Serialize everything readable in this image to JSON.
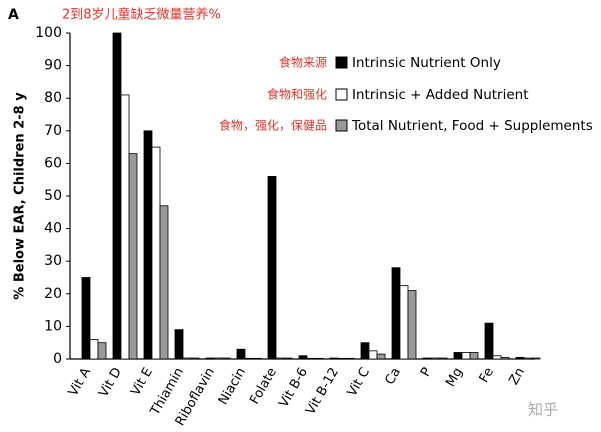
{
  "chart_data": {
    "type": "bar",
    "panel_label": "A",
    "title": "2到8岁儿童缺乏微量营养%",
    "y_label": "% Below EAR, Children 2-8 y",
    "annotations": [
      "食物来源",
      "食物和强化",
      "食物，强化，保健品"
    ],
    "watermark": "知乎",
    "categories": [
      "Vit A",
      "Vit D",
      "Vit E",
      "Thiamin",
      "Riboflavin",
      "Niacin",
      "Folate",
      "Vit B-6",
      "Vit B-12",
      "Vit C",
      "Ca",
      "P",
      "Mg",
      "Fe",
      "Zn"
    ],
    "series": [
      {
        "name": "Intrinsic Nutrient Only",
        "color": "#000000",
        "values": [
          25,
          100,
          70,
          9,
          0.3,
          3,
          56,
          1,
          0.3,
          5,
          28,
          0.3,
          2,
          11,
          0.5
        ]
      },
      {
        "name": "Intrinsic + Added Nutrient",
        "color": "#ffffff",
        "values": [
          6,
          81,
          65,
          0.3,
          0.3,
          0.2,
          0.3,
          0.2,
          0.2,
          2.5,
          22.5,
          0.3,
          2,
          1,
          0.3
        ]
      },
      {
        "name": "Total Nutrient, Food + Supplements",
        "color": "#999999",
        "values": [
          5,
          63,
          47,
          0.3,
          0.3,
          0.2,
          0.3,
          0.2,
          0.2,
          1.5,
          21,
          0.3,
          2,
          0.5,
          0.3
        ]
      }
    ],
    "ylim": [
      0,
      100
    ],
    "yticks": [
      0,
      10,
      20,
      30,
      40,
      50,
      60,
      70,
      80,
      90,
      100
    ],
    "grid": false
  }
}
